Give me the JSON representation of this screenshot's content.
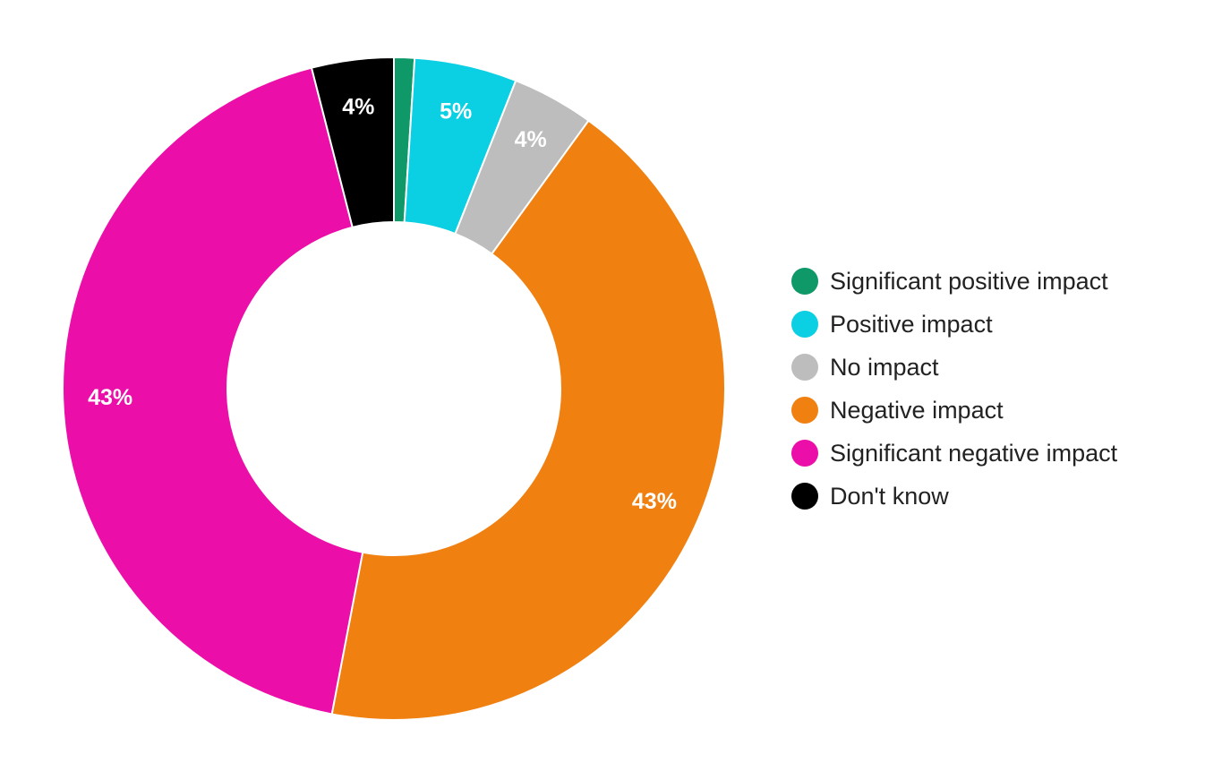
{
  "chart_data": {
    "type": "pie",
    "donut": true,
    "legend_position": "right",
    "slices": [
      {
        "label": "Significant positive impact",
        "value": 1,
        "color": "#0f9868",
        "data_label": ""
      },
      {
        "label": "Positive impact",
        "value": 5,
        "color": "#0bcfe2",
        "data_label": "5%"
      },
      {
        "label": "No impact",
        "value": 4,
        "color": "#bdbdbd",
        "data_label": "4%"
      },
      {
        "label": "Negative impact",
        "value": 43,
        "color": "#f08010",
        "data_label": "43%"
      },
      {
        "label": "Significant negative impact",
        "value": 43,
        "color": "#ec0ea8",
        "data_label": "43%"
      },
      {
        "label": "Don't know",
        "value": 4,
        "color": "#000000",
        "data_label": "4%"
      }
    ]
  }
}
